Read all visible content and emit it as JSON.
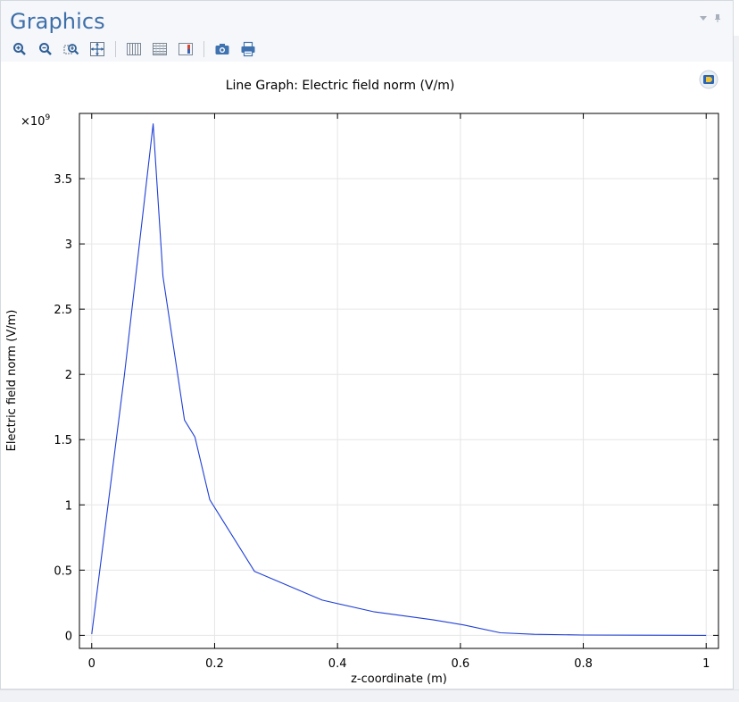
{
  "panel": {
    "title": "Graphics"
  },
  "toolbar": {
    "buttons": [
      "zoom-in-icon",
      "zoom-out-icon",
      "zoom-box-icon",
      "zoom-extents-icon",
      "grid-columns-icon",
      "grid-rows-icon",
      "color-legend-icon",
      "camera-icon",
      "print-icon"
    ]
  },
  "chart_data": {
    "type": "line",
    "title": "Line Graph: Electric field norm (V/m)",
    "xlabel": "z-coordinate (m)",
    "ylabel": "Electric field norm (V/m)",
    "y_multiplier": "×10",
    "y_multiplier_exp": "9",
    "xlim": [
      -0.02,
      1.02
    ],
    "ylim": [
      -0.1,
      4.0
    ],
    "x_ticks": [
      0,
      0.2,
      0.4,
      0.6,
      0.8,
      1
    ],
    "x_tick_labels": [
      "0",
      "0.2",
      "0.4",
      "0.6",
      "0.8",
      "1"
    ],
    "y_ticks": [
      0,
      0.5,
      1,
      1.5,
      2,
      2.5,
      3,
      3.5
    ],
    "y_tick_labels": [
      "0",
      "0.5",
      "1",
      "1.5",
      "2",
      "2.5",
      "3",
      "3.5"
    ],
    "grid": true,
    "series": [
      {
        "color": "#1f3fd6",
        "x": [
          0,
          0.053,
          0.1,
          0.116,
          0.151,
          0.168,
          0.192,
          0.265,
          0.375,
          0.46,
          0.555,
          0.605,
          0.665,
          0.72,
          0.8,
          0.9,
          1.0
        ],
        "y": [
          0.01,
          1.99,
          3.92,
          2.75,
          1.65,
          1.52,
          1.04,
          0.49,
          0.27,
          0.18,
          0.12,
          0.08,
          0.02,
          0.008,
          0.003,
          0.001,
          0.0
        ]
      }
    ]
  }
}
